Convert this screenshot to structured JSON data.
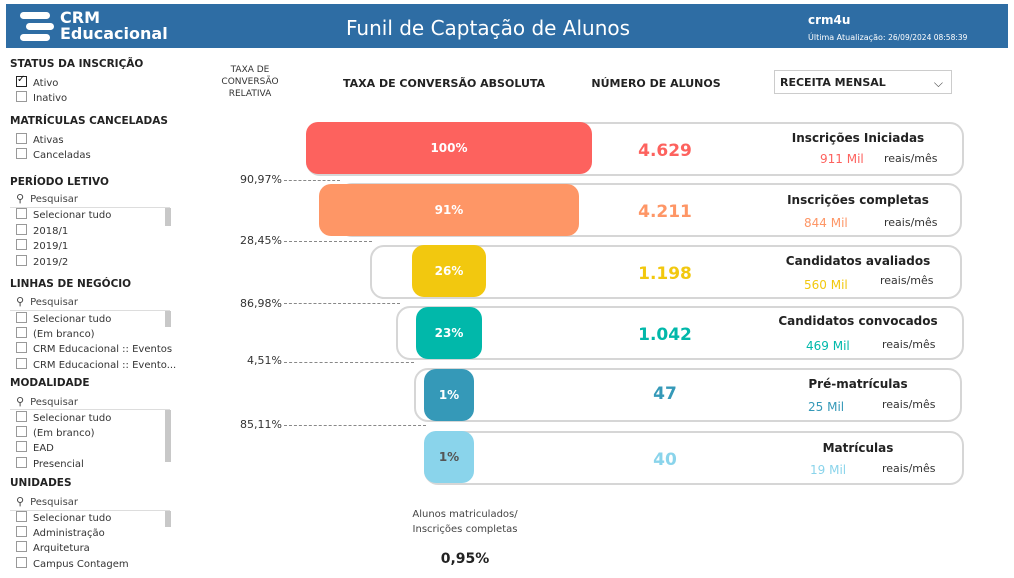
{
  "header": {
    "logo_line1": "CRM",
    "logo_line2": "Educacional",
    "title": "Funil de Captação de Alunos",
    "user": "crm4u",
    "update_label": "Última Atualização:",
    "update_value": "26/09/2024 08:58:39",
    "bg_color": "#2e6da4"
  },
  "sidebar": {
    "status": {
      "title": "STATUS DA INSCRIÇÃO",
      "options": [
        {
          "label": "Ativo",
          "checked": true
        },
        {
          "label": "Inativo",
          "checked": false
        }
      ]
    },
    "canceladas": {
      "title": "MATRÍCULAS CANCELADAS",
      "options": [
        {
          "label": "Ativas"
        },
        {
          "label": "Canceladas"
        }
      ]
    },
    "periodo": {
      "title": "PERÍODO LETIVO",
      "search": "Pesquisar",
      "options": [
        "Selecionar tudo",
        "2018/1",
        "2019/1",
        "2019/2"
      ]
    },
    "linhas": {
      "title": "LINHAS DE NEGÓCIO",
      "search": "Pesquisar",
      "options": [
        "Selecionar tudo",
        "(Em branco)",
        "CRM Educacional :: Eventos",
        "CRM Educacional :: Evento..."
      ]
    },
    "modalidade": {
      "title": "MODALIDADE",
      "search": "Pesquisar",
      "options": [
        "Selecionar tudo",
        "(Em branco)",
        "EAD",
        "Presencial"
      ]
    },
    "unidades": {
      "title": "UNIDADES",
      "search": "Pesquisar",
      "options": [
        "Selecionar tudo",
        "Administração",
        "Arquitetura",
        "Campus Contagem"
      ]
    }
  },
  "columns": {
    "relative_rate": "TAXA DE CONVERSÃO RELATIVA",
    "absolute_rate": "TAXA DE CONVERSÃO ABSOLUTA",
    "students": "NÚMERO DE ALUNOS",
    "revenue_dropdown": "RECEITA MENSAL"
  },
  "funnel": [
    {
      "stage": "Inscrições Iniciadas",
      "pct": "100%",
      "count": "4.629",
      "revenue": "911 Mil",
      "unit": "reais/mês",
      "color": "#fd625e",
      "fill": 1.0
    },
    {
      "stage": "Inscrições completas",
      "pct": "91%",
      "count": "4.211",
      "revenue": "844 Mil",
      "unit": "reais/mês",
      "color": "#fe9666",
      "fill": 0.91
    },
    {
      "stage": "Candidatos avaliados",
      "pct": "26%",
      "count": "1.198",
      "revenue": "560 Mil",
      "unit": "reais/mês",
      "color": "#f2c80f",
      "fill": 0.26
    },
    {
      "stage": "Candidatos convocados",
      "pct": "23%",
      "count": "1.042",
      "revenue": "469 Mil",
      "unit": "reais/mês",
      "color": "#01b8aa",
      "fill": 0.23
    },
    {
      "stage": "Pré-matrículas",
      "pct": "1%",
      "count": "47",
      "revenue": "25 Mil",
      "unit": "reais/mês",
      "color": "#3599b8",
      "fill": 0.01
    },
    {
      "stage": "Matrículas",
      "pct": "1%",
      "count": "40",
      "revenue": "19 Mil",
      "unit": "reais/mês",
      "color": "#8ad4eb",
      "fill": 0.01
    }
  ],
  "relative_rates": [
    "90,97%",
    "28,45%",
    "86,98%",
    "4,51%",
    "85,11%"
  ],
  "footer": {
    "label": "Alunos matriculados/ Inscrições completas",
    "value": "0,95%"
  }
}
